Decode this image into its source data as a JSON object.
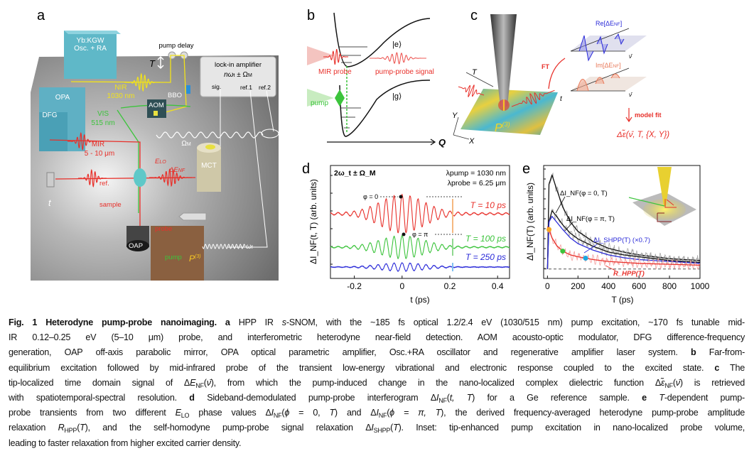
{
  "panels": {
    "a": {
      "label": "a",
      "yb_kgw": "Yb:KGW",
      "osc_ra": "Osc. + RA",
      "pump_delay": "pump delay",
      "T": "T",
      "lockin_title": "lock-in amplifier",
      "lockin_freq": "nω",
      "lockin_freq_sub": "t",
      "lockin_freq_rest": " ± Ω",
      "lockin_freq_sub2": "M",
      "sig": "sig.",
      "ref1": "ref.1",
      "ref2": "ref.2",
      "opa": "OPA",
      "dfg": "DFG",
      "nir": "NIR",
      "nir_wl": "1030 nm",
      "bbo": "BBO",
      "aom": "AOM",
      "vis": "VIS",
      "vis_wl": "515 nm",
      "mir": "MIR",
      "mir_wl": "5 - 10 μm",
      "omega_m": "Ω",
      "omega_m_sub": "M",
      "mct": "MCT",
      "e_lo": "E",
      "e_lo_sub": "LO",
      "de_nf": "ΔE",
      "de_nf_sub": "NF",
      "ref": "ref.",
      "t": "t",
      "sample": "sample",
      "oap": "OAP",
      "probe": "probe",
      "pump": "pump",
      "p3": "P",
      "p3_sup": "(3)",
      "omega_t": "ω",
      "omega_t_sub": "t"
    },
    "b": {
      "label": "b",
      "excited_state": "|e⟩",
      "ground_state": "|g⟩",
      "mir_probe": "MIR probe",
      "pump_probe_signal": "pump-probe signal",
      "pump": "pump",
      "q_axis": "Q"
    },
    "c": {
      "label": "c",
      "T": "T",
      "t": "t",
      "Y": "Y",
      "X": "X",
      "p3": "P",
      "p3_sup": "(3)",
      "ft": "FT",
      "re": "Re[ΔE",
      "re_sub": "NF",
      "im": "Im[ΔE",
      "im_sub": "NF",
      "close": "]",
      "nu": "ν̄",
      "model_fit": "model fit",
      "result": "Δε̃(ν̄, T, {X, Y})"
    }
  },
  "colors": {
    "red": "#e8302a",
    "green": "#3cc43c",
    "blue": "#2a2ad8",
    "yellow": "#f2e21a",
    "cyan_box": "#5fb8c8",
    "gray": "#9a9a9a",
    "orange": "#f5a623",
    "cyan_marker": "#1aa7e0"
  },
  "chart_data": [
    {
      "panel": "d",
      "type": "line",
      "xlabel": "t (ps)",
      "ylabel": "ΔI_NF(t, T) (arb. units)",
      "xlim": [
        -0.3,
        0.45
      ],
      "xticks": [
        -0.2,
        0,
        0.2,
        0.4
      ],
      "xtick_labels": [
        "-0.2",
        "0",
        "0.2",
        "0.4"
      ],
      "annotations": {
        "sideband": "2ω_t ± Ω_M",
        "lambda_pump": "λpump = 1030 nm",
        "lambda_probe": "λprobe = 6.25 μm",
        "phi0": "φ = 0",
        "phipi": "φ = π"
      },
      "series": [
        {
          "name": "T = 10 ps",
          "color": "#e8302a",
          "relative_amplitude": 1.0
        },
        {
          "name": "T = 100 ps",
          "color": "#3cc43c",
          "relative_amplitude": 0.6
        },
        {
          "name": "T = 250 ps",
          "color": "#2a2ad8",
          "relative_amplitude": 0.22
        }
      ]
    },
    {
      "panel": "e",
      "type": "line",
      "xlabel": "T (ps)",
      "ylabel": "ΔI_NF(T) (arb. units)",
      "xlim": [
        -25,
        1000
      ],
      "ylim": [
        -0.1,
        1.1
      ],
      "xticks": [
        0,
        200,
        400,
        600,
        800,
        1000
      ],
      "xtick_labels": [
        "0",
        "200",
        "400",
        "600",
        "800",
        "1000"
      ],
      "x": [
        0,
        10,
        30,
        60,
        100,
        150,
        200,
        300,
        400,
        500,
        600,
        800,
        1000
      ],
      "series": [
        {
          "name": "ΔI_NF(φ = 0, T)",
          "color": "#111111",
          "values": [
            0,
            0.9,
            1.0,
            0.85,
            0.66,
            0.5,
            0.4,
            0.29,
            0.22,
            0.18,
            0.15,
            0.11,
            0.09
          ]
        },
        {
          "name": "ΔI_NF(φ = π, T)",
          "color": "#111111",
          "values": [
            0,
            0.5,
            0.62,
            0.56,
            0.47,
            0.38,
            0.32,
            0.24,
            0.18,
            0.15,
            0.13,
            0.09,
            0.07
          ]
        },
        {
          "name": "ΔI_SHPP(T) (×0.7)",
          "color": "#2a2ad8",
          "values": [
            0,
            0.5,
            0.56,
            0.5,
            0.42,
            0.33,
            0.27,
            0.2,
            0.15,
            0.12,
            0.1,
            0.08,
            0.06
          ]
        },
        {
          "name": "R_HPP(T)",
          "color": "#e8302a",
          "values": [
            0.45,
            0.42,
            0.33,
            0.25,
            0.19,
            0.15,
            0.13,
            0.1,
            0.08,
            0.07,
            0.06,
            0.05,
            0.04
          ]
        }
      ],
      "markers": [
        {
          "T": 10,
          "color": "#f5a623"
        },
        {
          "T": 100,
          "color": "#3cc43c"
        },
        {
          "T": 250,
          "color": "#1aa7e0"
        }
      ],
      "baseline": 0
    }
  ],
  "caption": [
    [
      [
        "b",
        "Fig. 1 Heterodyne pump-probe nanoimaging. a"
      ],
      [
        "n",
        " HPP IR "
      ],
      [
        "i",
        "s"
      ],
      [
        "n",
        "-SNOM, with the ~185 fs optical 1.2/2.4 eV (1030/515 nm) pump excitation, ~170 fs tunable mid-"
      ]
    ],
    [
      [
        "n",
        "IR 0.12–0.25 eV (5–10 μm) probe, and interferometric heterodyne near-field detection. AOM acousto-optic modulator, DFG difference-frequency"
      ]
    ],
    [
      [
        "n",
        "generation, OAP off-axis parabolic mirror, OPA optical parametric amplifier, Osc.+RA oscillator and regenerative amplifier laser system. "
      ],
      [
        "b",
        "b"
      ],
      [
        "n",
        " Far-from-"
      ]
    ],
    [
      [
        "n",
        "equilibrium excitation followed by mid-infrared probe of the transient low-energy vibrational and electronic response coupled to the excited state. "
      ],
      [
        "b",
        "c"
      ],
      [
        "n",
        " The"
      ]
    ],
    [
      [
        "n",
        "tip-localized time domain signal of Δ"
      ],
      [
        "i",
        "E"
      ],
      [
        "sub",
        "NF"
      ],
      [
        "n",
        "("
      ],
      [
        "i",
        "ν̄"
      ],
      [
        "n",
        "), from which the pump-induced change in the nano-localized complex dielectric function Δ"
      ],
      [
        "i",
        "ε̃"
      ],
      [
        "sub",
        "NF"
      ],
      [
        "n",
        "("
      ],
      [
        "i",
        "ν̄"
      ],
      [
        "n",
        ") is retrieved"
      ]
    ],
    [
      [
        "n",
        "with spatiotemporal-spectral resolution. "
      ],
      [
        "b",
        "d"
      ],
      [
        "n",
        " Sideband-demodulated pump-probe interferogram Δ"
      ],
      [
        "i",
        "I"
      ],
      [
        "sub",
        "NF"
      ],
      [
        "n",
        "("
      ],
      [
        "i",
        "t, T"
      ],
      [
        "n",
        ") for a Ge reference sample. "
      ],
      [
        "b",
        "e"
      ],
      [
        "n",
        " "
      ],
      [
        "i",
        "T"
      ],
      [
        "n",
        "-dependent pump-"
      ]
    ],
    [
      [
        "n",
        "probe transients from two different "
      ],
      [
        "i",
        "E"
      ],
      [
        "sub",
        "LO"
      ],
      [
        "n",
        " phase values Δ"
      ],
      [
        "i",
        "I"
      ],
      [
        "sub",
        "NF"
      ],
      [
        "n",
        "("
      ],
      [
        "i",
        "ϕ"
      ],
      [
        "n",
        " = 0, "
      ],
      [
        "i",
        "T"
      ],
      [
        "n",
        ") and Δ"
      ],
      [
        "i",
        "I"
      ],
      [
        "sub",
        "NF"
      ],
      [
        "n",
        "("
      ],
      [
        "i",
        "ϕ = π, T"
      ],
      [
        "n",
        "), the derived frequency-averaged heterodyne pump-probe amplitude"
      ]
    ],
    [
      [
        "n",
        "relaxation "
      ],
      [
        "i",
        "R"
      ],
      [
        "sub",
        "HPP"
      ],
      [
        "n",
        "("
      ],
      [
        "i",
        "T"
      ],
      [
        "n",
        "), and the self-homodyne pump-probe signal relaxation Δ"
      ],
      [
        "i",
        "I"
      ],
      [
        "sub",
        "SHPP"
      ],
      [
        "n",
        "("
      ],
      [
        "i",
        "T"
      ],
      [
        "n",
        "). Inset: tip-enhanced pump excitation in nano-localized probe volume,"
      ]
    ],
    [
      [
        "n",
        "leading to faster relaxation from higher excited carrier density."
      ]
    ]
  ]
}
